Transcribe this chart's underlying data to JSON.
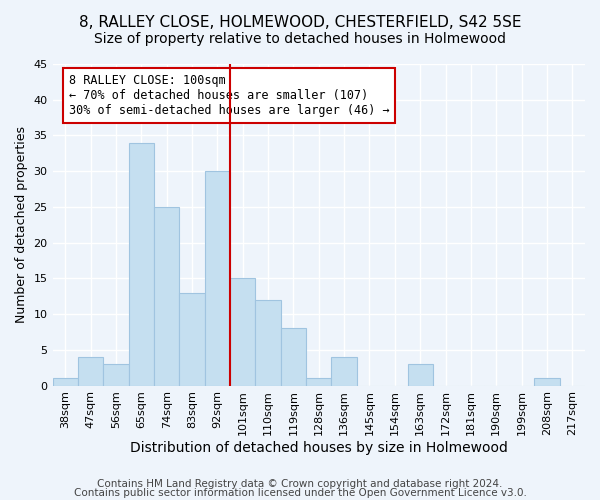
{
  "title1": "8, RALLEY CLOSE, HOLMEWOOD, CHESTERFIELD, S42 5SE",
  "title2": "Size of property relative to detached houses in Holmewood",
  "xlabel": "Distribution of detached houses by size in Holmewood",
  "ylabel": "Number of detached properties",
  "footer1": "Contains HM Land Registry data © Crown copyright and database right 2024.",
  "footer2": "Contains public sector information licensed under the Open Government Licence v3.0.",
  "annotation_line1": "8 RALLEY CLOSE: 100sqm",
  "annotation_line2": "← 70% of detached houses are smaller (107)",
  "annotation_line3": "30% of semi-detached houses are larger (46) →",
  "bar_color": "#c5dff0",
  "bar_edge_color": "#a0c4e0",
  "vline_color": "#cc0000",
  "vline_index": 6.5,
  "bins": [
    "38sqm",
    "47sqm",
    "56sqm",
    "65sqm",
    "74sqm",
    "83sqm",
    "92sqm",
    "101sqm",
    "110sqm",
    "119sqm",
    "128sqm",
    "136sqm",
    "145sqm",
    "154sqm",
    "163sqm",
    "172sqm",
    "181sqm",
    "190sqm",
    "199sqm",
    "208sqm",
    "217sqm"
  ],
  "counts": [
    1,
    4,
    3,
    34,
    25,
    13,
    30,
    15,
    12,
    8,
    1,
    4,
    0,
    0,
    3,
    0,
    0,
    0,
    0,
    1,
    0
  ],
  "ylim": [
    0,
    45
  ],
  "yticks": [
    0,
    5,
    10,
    15,
    20,
    25,
    30,
    35,
    40,
    45
  ],
  "background_color": "#eef4fb",
  "grid_color": "#ffffff",
  "title1_fontsize": 11,
  "title2_fontsize": 10,
  "xlabel_fontsize": 10,
  "ylabel_fontsize": 9,
  "tick_fontsize": 8,
  "footer_fontsize": 7.5
}
